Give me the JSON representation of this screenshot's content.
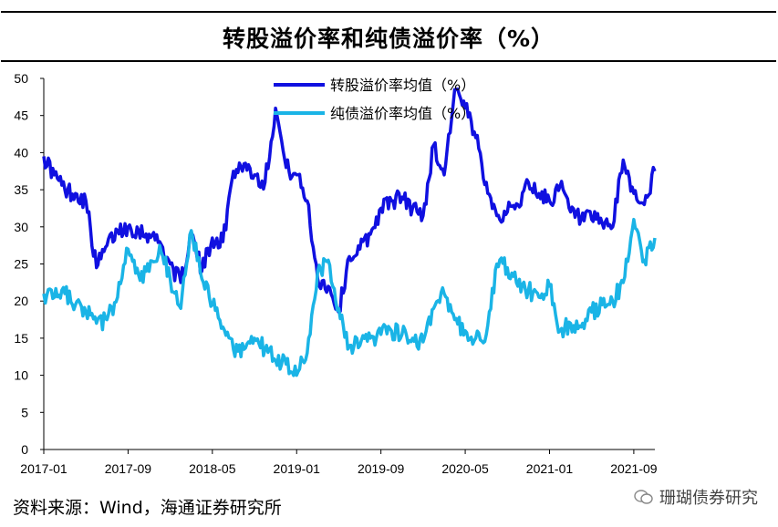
{
  "title": "转股溢价率和纯债溢价率（%）",
  "source": "资料来源：Wind，海通证券研究所",
  "watermark": "珊瑚债券研究",
  "chart_data": {
    "type": "line",
    "title": "转股溢价率和纯债溢价率（%）",
    "xlabel": "",
    "ylabel": "",
    "ylim": [
      0,
      50
    ],
    "yticks": [
      0,
      5,
      10,
      15,
      20,
      25,
      30,
      35,
      40,
      45,
      50
    ],
    "xlim": [
      "2017-01",
      "2021-11"
    ],
    "xticks": [
      "2017-01",
      "2017-09",
      "2018-05",
      "2019-01",
      "2019-09",
      "2020-05",
      "2021-01",
      "2021-09"
    ],
    "grid": false,
    "legend": "top-center",
    "series": [
      {
        "name": "转股溢价率均值（%）",
        "color": "#1010e0",
        "points": [
          [
            "2017-01",
            39.5
          ],
          [
            "2017-02",
            37.0
          ],
          [
            "2017-03",
            35.0
          ],
          [
            "2017-04",
            34.5
          ],
          [
            "2017-05",
            33.5
          ],
          [
            "2017-06",
            24.5
          ],
          [
            "2017-07",
            27.5
          ],
          [
            "2017-08",
            29.5
          ],
          [
            "2017-09",
            30.0
          ],
          [
            "2017-10",
            29.5
          ],
          [
            "2017-11",
            29.0
          ],
          [
            "2017-12",
            28.0
          ],
          [
            "2018-01",
            25.0
          ],
          [
            "2018-02",
            22.5
          ],
          [
            "2018-03",
            29.0
          ],
          [
            "2018-04",
            24.0
          ],
          [
            "2018-05",
            28.5
          ],
          [
            "2018-06",
            28.0
          ],
          [
            "2018-07",
            37.5
          ],
          [
            "2018-08",
            38.5
          ],
          [
            "2018-09",
            37.0
          ],
          [
            "2018-10",
            36.0
          ],
          [
            "2018-11",
            46.0
          ],
          [
            "2018-12",
            38.0
          ],
          [
            "2019-01",
            37.0
          ],
          [
            "2019-02",
            33.5
          ],
          [
            "2019-03",
            23.0
          ],
          [
            "2019-04",
            22.0
          ],
          [
            "2019-05",
            18.5
          ],
          [
            "2019-06",
            26.0
          ],
          [
            "2019-07",
            27.0
          ],
          [
            "2019-08",
            29.0
          ],
          [
            "2019-09",
            32.5
          ],
          [
            "2019-10",
            33.5
          ],
          [
            "2019-11",
            34.0
          ],
          [
            "2019-12",
            32.5
          ],
          [
            "2020-01",
            31.5
          ],
          [
            "2020-02",
            41.0
          ],
          [
            "2020-03",
            37.0
          ],
          [
            "2020-04",
            48.5
          ],
          [
            "2020-05",
            46.0
          ],
          [
            "2020-06",
            42.0
          ],
          [
            "2020-07",
            36.0
          ],
          [
            "2020-08",
            31.5
          ],
          [
            "2020-09",
            32.0
          ],
          [
            "2020-10",
            33.0
          ],
          [
            "2020-11",
            36.0
          ],
          [
            "2020-12",
            34.5
          ],
          [
            "2021-01",
            33.5
          ],
          [
            "2021-02",
            35.5
          ],
          [
            "2021-03",
            32.0
          ],
          [
            "2021-04",
            31.0
          ],
          [
            "2021-05",
            31.0
          ],
          [
            "2021-06",
            30.5
          ],
          [
            "2021-07",
            30.0
          ],
          [
            "2021-08",
            39.0
          ],
          [
            "2021-09",
            34.5
          ],
          [
            "2021-10",
            33.0
          ],
          [
            "2021-11",
            37.5
          ]
        ]
      },
      {
        "name": "纯债溢价率均值（%）",
        "color": "#1ab4e6",
        "points": [
          [
            "2017-01",
            21.0
          ],
          [
            "2017-02",
            20.5
          ],
          [
            "2017-03",
            21.0
          ],
          [
            "2017-04",
            19.5
          ],
          [
            "2017-05",
            18.5
          ],
          [
            "2017-06",
            17.0
          ],
          [
            "2017-07",
            17.5
          ],
          [
            "2017-08",
            20.5
          ],
          [
            "2017-09",
            27.0
          ],
          [
            "2017-10",
            23.5
          ],
          [
            "2017-11",
            24.0
          ],
          [
            "2017-12",
            27.5
          ],
          [
            "2018-01",
            23.0
          ],
          [
            "2018-02",
            19.0
          ],
          [
            "2018-03",
            29.5
          ],
          [
            "2018-04",
            23.0
          ],
          [
            "2018-05",
            19.5
          ],
          [
            "2018-06",
            16.5
          ],
          [
            "2018-07",
            13.5
          ],
          [
            "2018-08",
            13.5
          ],
          [
            "2018-09",
            15.0
          ],
          [
            "2018-10",
            13.5
          ],
          [
            "2018-11",
            12.0
          ],
          [
            "2018-12",
            11.5
          ],
          [
            "2019-01",
            10.0
          ],
          [
            "2019-02",
            13.0
          ],
          [
            "2019-03",
            24.0
          ],
          [
            "2019-04",
            25.5
          ],
          [
            "2019-05",
            19.0
          ],
          [
            "2019-06",
            14.0
          ],
          [
            "2019-07",
            14.0
          ],
          [
            "2019-08",
            15.0
          ],
          [
            "2019-09",
            15.5
          ],
          [
            "2019-10",
            16.0
          ],
          [
            "2019-11",
            15.5
          ],
          [
            "2019-12",
            15.0
          ],
          [
            "2020-01",
            14.5
          ],
          [
            "2020-02",
            19.0
          ],
          [
            "2020-03",
            21.0
          ],
          [
            "2020-04",
            17.5
          ],
          [
            "2020-05",
            16.0
          ],
          [
            "2020-06",
            15.0
          ],
          [
            "2020-07",
            15.5
          ],
          [
            "2020-08",
            25.0
          ],
          [
            "2020-09",
            24.5
          ],
          [
            "2020-10",
            22.0
          ],
          [
            "2020-11",
            21.5
          ],
          [
            "2020-12",
            20.5
          ],
          [
            "2021-01",
            22.0
          ],
          [
            "2021-02",
            16.0
          ],
          [
            "2021-03",
            17.0
          ],
          [
            "2021-04",
            16.5
          ],
          [
            "2021-05",
            18.5
          ],
          [
            "2021-06",
            19.5
          ],
          [
            "2021-07",
            20.0
          ],
          [
            "2021-08",
            22.5
          ],
          [
            "2021-09",
            31.0
          ],
          [
            "2021-10",
            25.5
          ],
          [
            "2021-11",
            28.5
          ]
        ]
      }
    ]
  }
}
